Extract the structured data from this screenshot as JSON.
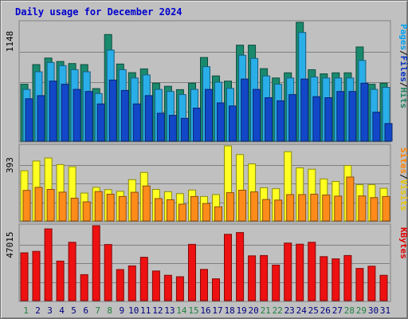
{
  "chart_data": {
    "type": "bar",
    "title": "Daily usage for December 2024",
    "categories": [
      "1",
      "2",
      "3",
      "4",
      "5",
      "6",
      "7",
      "8",
      "9",
      "10",
      "11",
      "12",
      "13",
      "14",
      "15",
      "16",
      "17",
      "18",
      "19",
      "20",
      "21",
      "22",
      "23",
      "24",
      "25",
      "26",
      "27",
      "28",
      "29",
      "30",
      "31"
    ],
    "weekend_days": [
      "1",
      "7",
      "8",
      "14",
      "15",
      "21",
      "22",
      "28",
      "29"
    ],
    "panels": [
      {
        "max_label": "1148",
        "ylim": [
          0,
          1148
        ],
        "legend": [
          "Pages",
          "Files",
          "Hits"
        ],
        "legend_colors": [
          "#00a0f0",
          "#0030c0",
          "#208060"
        ],
        "series": [
          {
            "name": "Hits",
            "color": "#1a8a6e",
            "values": [
              550,
              740,
              803,
              770,
              750,
              740,
              508,
              1030,
              745,
              662,
              698,
              560,
              530,
              498,
              560,
              808,
              630,
              580,
              928,
              928,
              700,
              610,
              660,
              1148,
              690,
              650,
              660,
              660,
              910,
              550,
              560
            ]
          },
          {
            "name": "Files",
            "color": "#2aaee8",
            "values": [
              500,
              670,
              760,
              730,
              690,
              670,
              460,
              880,
              690,
              610,
              640,
              500,
              480,
              450,
              500,
              720,
              570,
              510,
              830,
              800,
              630,
              550,
              610,
              1050,
              620,
              610,
              610,
              610,
              780,
              500,
              520
            ]
          },
          {
            "name": "Pages",
            "color": "#1248c8",
            "values": [
              410,
              440,
              580,
              550,
              500,
              480,
              360,
              590,
              490,
              360,
              440,
              270,
              250,
              220,
              320,
              500,
              370,
              340,
              600,
              500,
              420,
              390,
              450,
              600,
              430,
              420,
              480,
              480,
              560,
              280,
              170
            ]
          }
        ]
      },
      {
        "max_label": "393",
        "ylim": [
          0,
          393
        ],
        "legend": [
          "Sites",
          "Visits"
        ],
        "legend_colors": [
          "#ff8000",
          "#e8c800"
        ],
        "series": [
          {
            "name": "Visits",
            "color": "#ffff22",
            "values": [
              263,
              314,
              330,
              295,
              284,
              146,
              176,
              164,
              155,
              216,
              254,
              165,
              153,
              143,
              162,
              128,
              138,
              393,
              348,
              299,
              174,
              169,
              363,
              278,
              271,
              220,
              207,
              290,
              190,
              190,
              171
            ]
          },
          {
            "name": "Sites",
            "color": "#ff8c1a",
            "values": [
              160,
              176,
              165,
              151,
              119,
              100,
              154,
              140,
              128,
              150,
              183,
              117,
              111,
              88,
              128,
              91,
              74,
              148,
              161,
              152,
              112,
              109,
              138,
              138,
              140,
              136,
              130,
              230,
              131,
              122,
              128
            ]
          }
        ]
      },
      {
        "max_label": "47015",
        "ylim": [
          0,
          47015
        ],
        "legend": [
          "KBytes"
        ],
        "legend_colors": [
          "#e00000"
        ],
        "series": [
          {
            "name": "KBytes",
            "color": "#ee1111",
            "values": [
              30000,
              30900,
              45000,
              24800,
              36600,
              16300,
              47015,
              35200,
              19500,
              21800,
              27200,
              18600,
              15900,
              15000,
              35300,
              19600,
              13700,
              41600,
              42700,
              28100,
              28300,
              22300,
              36100,
              35400,
              36600,
              27600,
              26200,
              28300,
              20200,
              21600,
              15900
            ]
          }
        ]
      }
    ]
  }
}
